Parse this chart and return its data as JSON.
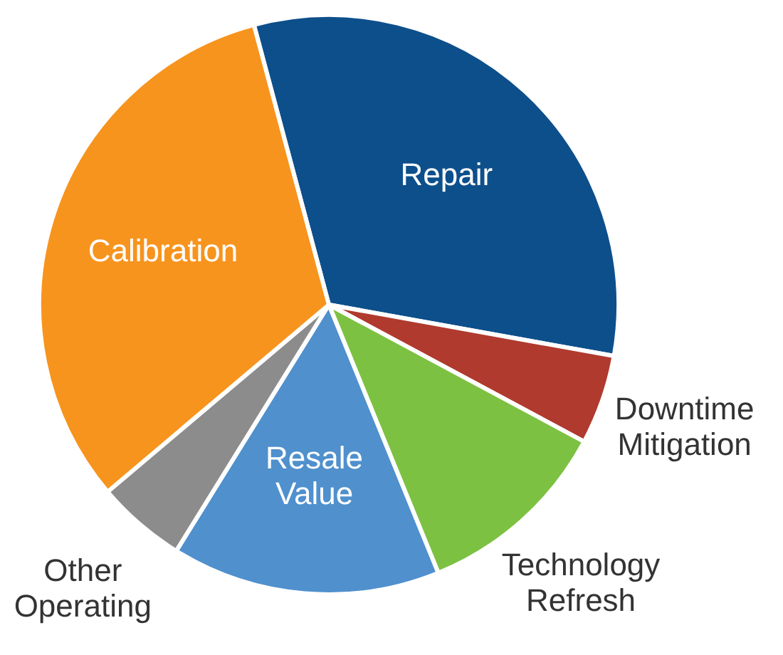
{
  "chart_data": {
    "type": "pie",
    "categories": [
      "Repair",
      "Downtime Mitigation",
      "Technology Refresh",
      "Resale Value",
      "Other Operating",
      "Calibration"
    ],
    "values": [
      32,
      5,
      11,
      15,
      5,
      32
    ],
    "colors": [
      "#0d4f8b",
      "#b03a2e",
      "#7dc142",
      "#4f90cd",
      "#8c8c8c",
      "#f7941d"
    ],
    "legend": false
  }
}
